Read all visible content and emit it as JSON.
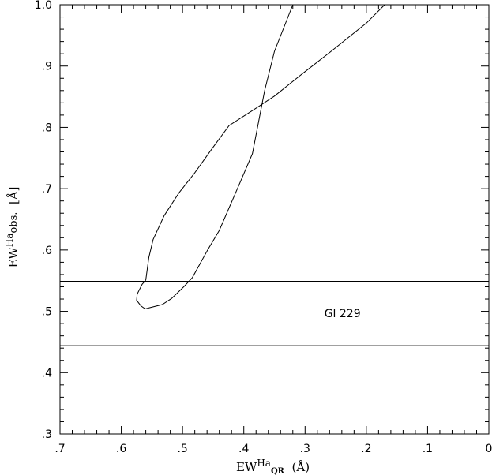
{
  "chart_data": {
    "type": "line",
    "title": "",
    "xlabel": {
      "main": "EW",
      "sup": "Ha",
      "sub": "QR",
      "unit": "  (Å)"
    },
    "ylabel": {
      "main": "EW",
      "sup": "Ha",
      "sub": "obs.",
      "unit": "  [Å]"
    },
    "xlim": [
      0.7,
      0.0
    ],
    "ylim": [
      0.3,
      1.0
    ],
    "x_reversed": true,
    "x_ticks": [
      0.7,
      0.6,
      0.5,
      0.4,
      0.3,
      0.2,
      0.1,
      0.0
    ],
    "x_tick_labels": [
      ".7",
      ".6",
      ".5",
      ".4",
      ".3",
      ".2",
      ".1",
      "0"
    ],
    "y_ticks": [
      0.3,
      0.4,
      0.5,
      0.6,
      0.7,
      0.8,
      0.9,
      1.0
    ],
    "y_tick_labels": [
      ".3",
      ".4",
      ".5",
      ".6",
      ".7",
      ".8",
      ".9",
      "1.0"
    ],
    "grid": false,
    "series": [
      {
        "points": [
          [
            0.32,
            1.0
          ],
          [
            0.35,
            0.924
          ],
          [
            0.366,
            0.86
          ],
          [
            0.386,
            0.757
          ],
          [
            0.413,
            0.694
          ],
          [
            0.44,
            0.632
          ],
          [
            0.459,
            0.6
          ],
          [
            0.484,
            0.555
          ],
          [
            0.498,
            0.54
          ],
          [
            0.518,
            0.521
          ],
          [
            0.533,
            0.511
          ],
          [
            0.553,
            0.506
          ],
          [
            0.561,
            0.504
          ],
          [
            0.568,
            0.509
          ],
          [
            0.575,
            0.518
          ],
          [
            0.574,
            0.528
          ],
          [
            0.566,
            0.544
          ],
          [
            0.56,
            0.551
          ],
          [
            0.555,
            0.588
          ],
          [
            0.548,
            0.617
          ],
          [
            0.53,
            0.656
          ],
          [
            0.506,
            0.693
          ],
          [
            0.48,
            0.726
          ],
          [
            0.452,
            0.765
          ],
          [
            0.424,
            0.803
          ],
          [
            0.385,
            0.828
          ],
          [
            0.35,
            0.851
          ],
          [
            0.305,
            0.887
          ],
          [
            0.26,
            0.922
          ],
          [
            0.2,
            0.97
          ],
          [
            0.17,
            1.0
          ]
        ],
        "color": "#000000"
      },
      {
        "points": [
          [
            0.7,
            0.549
          ],
          [
            0.0,
            0.549
          ]
        ],
        "color": "#000000"
      },
      {
        "points": [
          [
            0.7,
            0.444
          ],
          [
            0.0,
            0.444
          ]
        ],
        "color": "#000000"
      }
    ],
    "annotations": [
      {
        "text": "Gl 229",
        "x": 0.235,
        "y": 0.497
      }
    ]
  }
}
